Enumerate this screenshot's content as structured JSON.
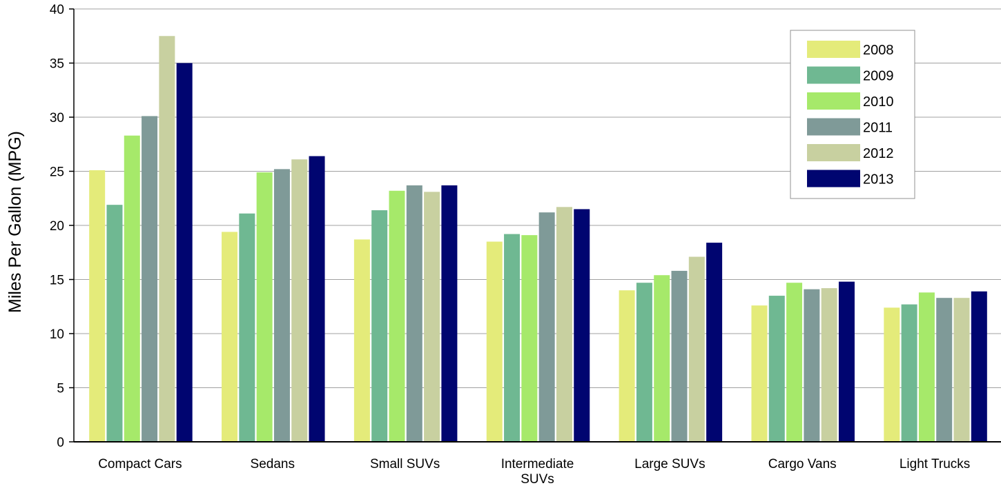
{
  "chart_data": {
    "type": "bar",
    "title": "",
    "xlabel": "",
    "ylabel": "Miles Per Gallon (MPG)",
    "ylim": [
      0,
      40
    ],
    "yticks": [
      0,
      5,
      10,
      15,
      20,
      25,
      30,
      35,
      40
    ],
    "grid": true,
    "legend_position": "top-right",
    "categories": [
      [
        "Compact Cars"
      ],
      [
        "Sedans"
      ],
      [
        "Small SUVs"
      ],
      [
        "Intermediate",
        "SUVs"
      ],
      [
        "Large SUVs"
      ],
      [
        "Cargo Vans"
      ],
      [
        "Light Trucks"
      ]
    ],
    "series": [
      {
        "name": "2008",
        "color": "#e4eb7a",
        "values": [
          25.1,
          19.4,
          18.7,
          18.5,
          14.0,
          12.6,
          12.4
        ]
      },
      {
        "name": "2009",
        "color": "#6fb892",
        "values": [
          21.9,
          21.1,
          21.4,
          19.2,
          14.7,
          13.5,
          12.7
        ]
      },
      {
        "name": "2010",
        "color": "#a6e96a",
        "values": [
          28.3,
          24.9,
          23.2,
          19.1,
          15.4,
          14.7,
          13.8
        ]
      },
      {
        "name": "2011",
        "color": "#7f9a98",
        "values": [
          30.1,
          25.2,
          23.7,
          21.2,
          15.8,
          14.1,
          13.3
        ]
      },
      {
        "name": "2012",
        "color": "#c8d0a0",
        "values": [
          37.5,
          26.1,
          23.1,
          21.7,
          17.1,
          14.2,
          13.3
        ]
      },
      {
        "name": "2013",
        "color": "#000570",
        "values": [
          35.0,
          26.4,
          23.7,
          21.5,
          18.4,
          14.8,
          13.9
        ]
      }
    ]
  }
}
